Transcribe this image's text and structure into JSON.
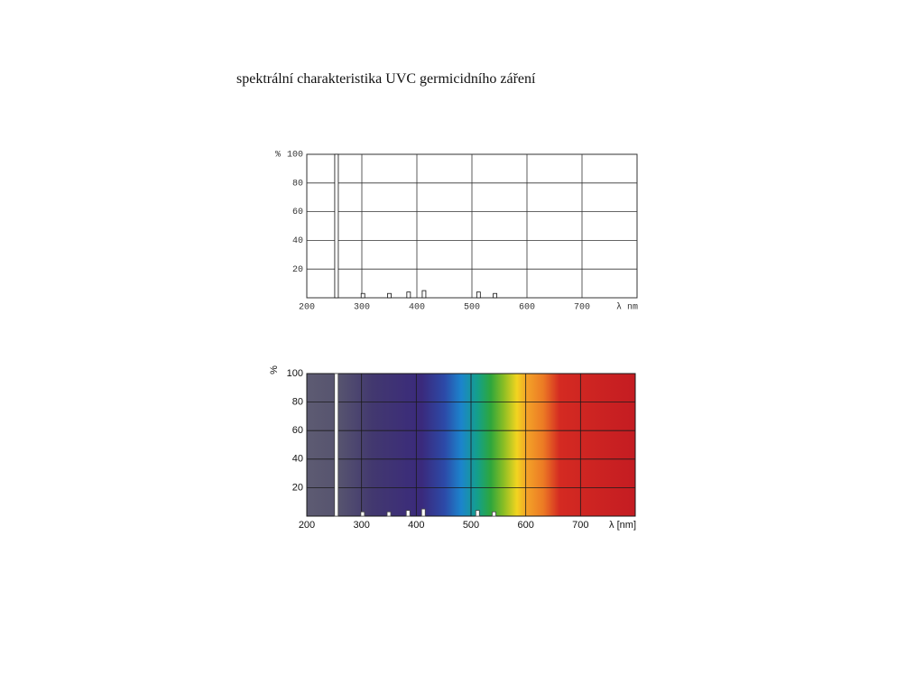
{
  "title": "spektrální charakteristika UVC germicidního záření",
  "chart_data": [
    {
      "type": "bar",
      "ylabel": "%",
      "xlabel": "λ nm",
      "x": [
        254,
        302,
        350,
        385,
        413,
        512,
        542
      ],
      "values": [
        100,
        3,
        3,
        4,
        5,
        4,
        3
      ],
      "color": "#ffffff",
      "xlim": [
        200,
        800
      ],
      "ylim": [
        0,
        100
      ],
      "xticks": [
        200,
        300,
        400,
        500,
        600,
        700
      ],
      "yticks": [
        20,
        40,
        60,
        80,
        100
      ],
      "grid": true
    },
    {
      "type": "bar",
      "ylabel": "%",
      "xlabel": "λ [nm]",
      "x": [
        254,
        302,
        350,
        385,
        413,
        512,
        542
      ],
      "values": [
        100,
        3,
        3,
        4,
        5,
        4,
        3
      ],
      "color": "#ffffff",
      "xlim": [
        200,
        800
      ],
      "ylim": [
        0,
        100
      ],
      "xticks": [
        200,
        300,
        400,
        500,
        600,
        700
      ],
      "yticks": [
        20,
        40,
        60,
        80,
        100
      ],
      "grid": true
    }
  ]
}
